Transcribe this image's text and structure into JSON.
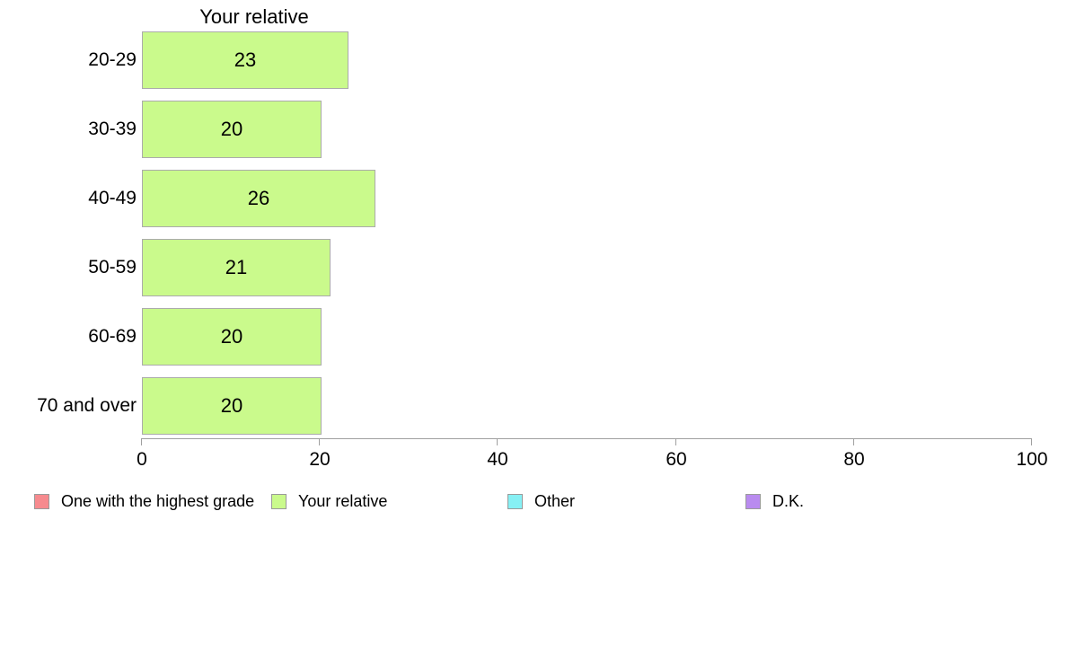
{
  "chart_data": {
    "type": "bar",
    "orientation": "horizontal",
    "title": "Your relative",
    "categories": [
      "20-29",
      "30-39",
      "40-49",
      "50-59",
      "60-69",
      "70 and over"
    ],
    "values": [
      23,
      20,
      26,
      21,
      20,
      20
    ],
    "xlabel": "",
    "ylabel": "",
    "xlim": [
      0,
      100
    ],
    "x_ticks": [
      0,
      20,
      40,
      60,
      80,
      100
    ],
    "grid": "off",
    "bar_fill": "#cafa8c",
    "bar_border": "#ababab",
    "axis_color": "#a0a0a0",
    "legend_position": "bottom",
    "legend": [
      {
        "label": "One with the highest grade",
        "color": "#f68a8e"
      },
      {
        "label": "Your relative",
        "color": "#cafa8c"
      },
      {
        "label": "Other",
        "color": "#86f0f4"
      },
      {
        "label": "D.K.",
        "color": "#b98bef"
      }
    ]
  }
}
